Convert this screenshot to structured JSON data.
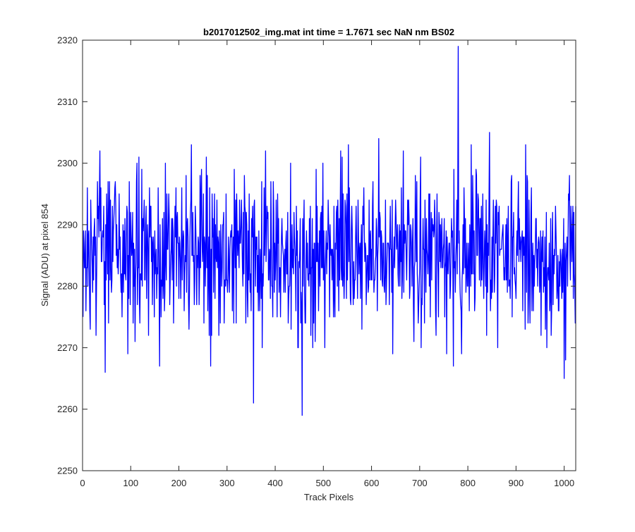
{
  "chart_data": {
    "type": "line",
    "title": "b2017012502_img.mat int time = 1.7671 sec  NaN nm BS02",
    "xlabel": "Track Pixels",
    "ylabel": "Signal (ADU) at pixel 854",
    "xlim": [
      0,
      1024
    ],
    "ylim": [
      2250,
      2320
    ],
    "xticks": [
      0,
      100,
      200,
      300,
      400,
      500,
      600,
      700,
      800,
      900,
      1000
    ],
    "yticks": [
      2250,
      2260,
      2270,
      2280,
      2290,
      2300,
      2310,
      2320
    ],
    "grid": false,
    "legend": "none",
    "series_color": "#0000ff",
    "noise": {
      "x_start": 1,
      "x_end": 1024,
      "mean": 2285.5,
      "std": 6.3,
      "min": 2259,
      "max": 2319
    },
    "notable_points": [
      {
        "x": 780,
        "y": 2319
      },
      {
        "x": 456,
        "y": 2259
      },
      {
        "x": 355,
        "y": 2261
      },
      {
        "x": 160,
        "y": 2267
      },
      {
        "x": 266,
        "y": 2267
      },
      {
        "x": 770,
        "y": 2267
      },
      {
        "x": 1003,
        "y": 2268
      },
      {
        "x": 36,
        "y": 2302
      },
      {
        "x": 380,
        "y": 2302
      },
      {
        "x": 552,
        "y": 2303
      },
      {
        "x": 615,
        "y": 2304
      },
      {
        "x": 845,
        "y": 2305
      },
      {
        "x": 920,
        "y": 2303
      }
    ]
  }
}
